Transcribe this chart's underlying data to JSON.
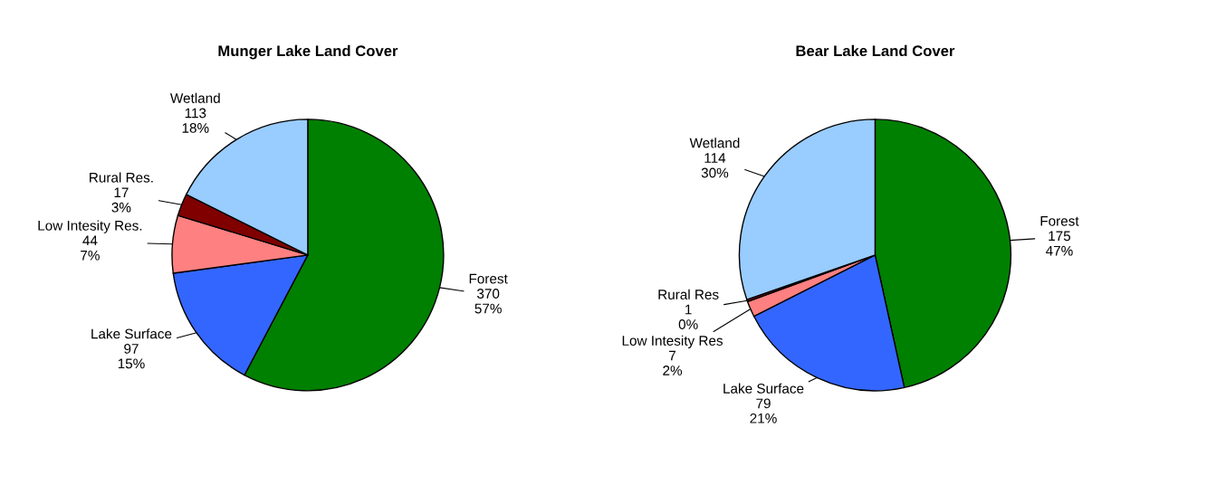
{
  "chart_data": [
    {
      "type": "pie",
      "title": "Munger Lake Land Cover",
      "categories": [
        "Forest",
        "Lake Surface",
        "Low Intesity Res.",
        "Rural Res.",
        "Wetland"
      ],
      "values": [
        370,
        97,
        44,
        17,
        113
      ],
      "colors": [
        "#008000",
        "#3366ff",
        "#ff8080",
        "#800000",
        "#99ccff"
      ],
      "value_labels": [
        "370\n57%",
        "97\n15%",
        "44\n7%",
        "17\n3%",
        "113\n18%"
      ],
      "legend": false
    },
    {
      "type": "pie",
      "title": "Bear Lake Land Cover",
      "categories": [
        "Forest",
        "Lake Surface",
        "Low Intesity Res",
        "Rural Res",
        "Wetland"
      ],
      "values": [
        175,
        79,
        7,
        1,
        114
      ],
      "colors": [
        "#008000",
        "#3366ff",
        "#ff8080",
        "#800000",
        "#99ccff"
      ],
      "value_labels": [
        "175\n47%",
        "79\n21%",
        "7\n2%",
        "1\n0%",
        "114\n30%"
      ],
      "legend": false
    }
  ]
}
